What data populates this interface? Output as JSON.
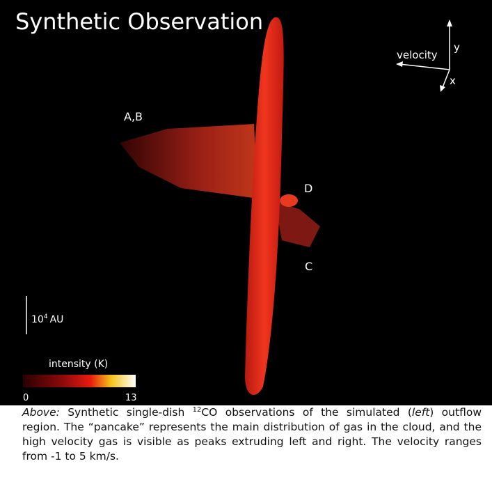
{
  "figure": {
    "title": "Synthetic Observation",
    "axes": {
      "velocity": "velocity",
      "y": "y",
      "x": "x"
    },
    "labels": {
      "ab": "A,B",
      "d": "D",
      "c": "C"
    },
    "scale_bar": {
      "base": "10",
      "exponent": "4",
      "unit": "AU"
    },
    "colorbar": {
      "label": "intensity (K)",
      "min": "0",
      "max": "13"
    }
  },
  "caption": {
    "parts": [
      "Above:",
      " Synthetic single-dish ",
      "12",
      "CO observations of the simulated (",
      "left",
      ") outflow region.  The “pancake” represents the main distribution of gas in the cloud, and the high velocity gas is visible as peaks extruding left and right.  The velocity ranges from -1 to 5 km/s."
    ]
  }
}
